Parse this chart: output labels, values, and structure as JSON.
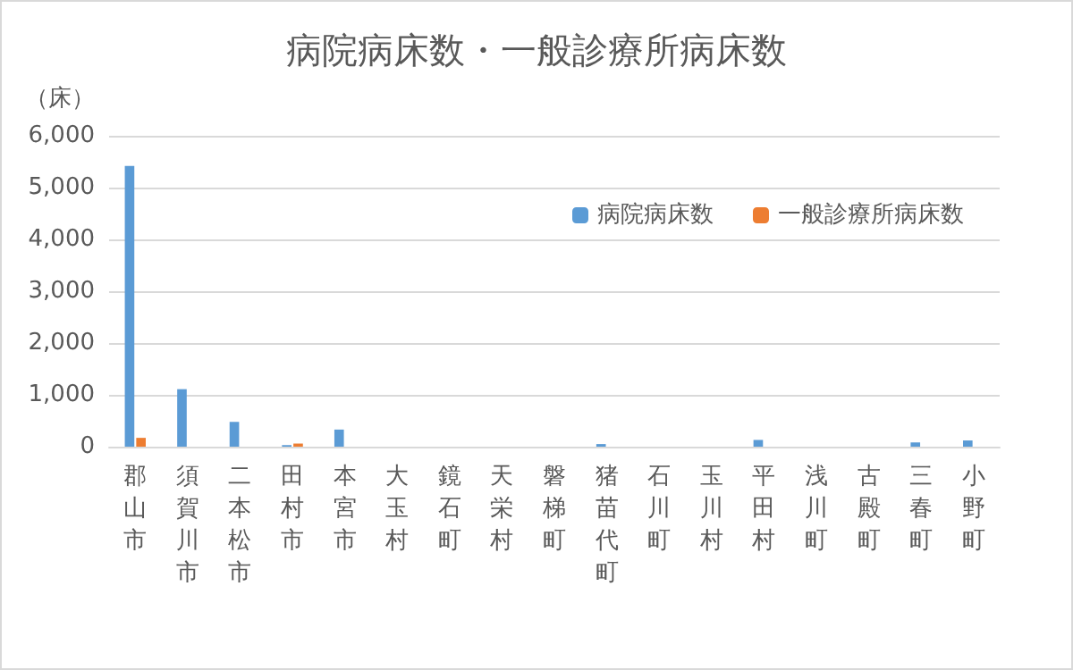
{
  "chart_data": {
    "type": "bar",
    "title": "病院病床数・一般診療所病床数",
    "ylabel": "（床）",
    "categories": [
      "郡山市",
      "須賀川市",
      "二本松市",
      "田村市",
      "本宮市",
      "大玉村",
      "鏡石町",
      "天栄村",
      "磐梯町",
      "猪苗代町",
      "石川町",
      "玉川村",
      "平田村",
      "浅川町",
      "古殿町",
      "三春町",
      "小野町"
    ],
    "series": [
      {
        "name": "病院病床数",
        "color": "#5b9bd5",
        "values": [
          5420,
          1110,
          480,
          30,
          330,
          0,
          0,
          0,
          0,
          50,
          0,
          0,
          130,
          0,
          0,
          80,
          120
        ]
      },
      {
        "name": "一般診療所病床数",
        "color": "#ed7d31",
        "values": [
          170,
          0,
          0,
          60,
          0,
          0,
          0,
          0,
          0,
          0,
          0,
          0,
          0,
          0,
          0,
          0,
          0
        ]
      }
    ],
    "ylim": [
      0,
      6000
    ],
    "yticks": [
      0,
      {
        "value": 1000,
        "label": "1,000"
      },
      {
        "value": 2000,
        "label": "2,000"
      },
      {
        "value": 3000,
        "label": "3,000"
      },
      {
        "value": 4000,
        "label": "4,000"
      },
      {
        "value": 5000,
        "label": "5,000"
      },
      {
        "value": 6000,
        "label": "6,000"
      }
    ],
    "grid": "y",
    "legend": "top right"
  }
}
